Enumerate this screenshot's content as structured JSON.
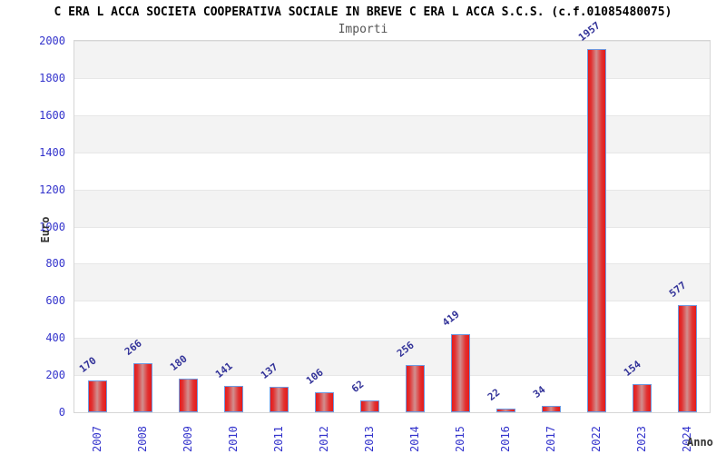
{
  "header": {
    "title": "C ERA L ACCA SOCIETA COOPERATIVA SOCIALE IN BREVE C ERA L ACCA S.C.S. (c.f.01085480075)",
    "subtitle": "Importi"
  },
  "chart_data": {
    "type": "bar",
    "title": "C ERA L ACCA SOCIETA COOPERATIVA SOCIALE IN BREVE C ERA L ACCA S.C.S. (c.f.01085480075)",
    "subtitle": "Importi",
    "xlabel": "Anno",
    "ylabel": "Euro",
    "categories": [
      "2007",
      "2008",
      "2009",
      "2010",
      "2011",
      "2012",
      "2013",
      "2014",
      "2015",
      "2016",
      "2017",
      "2022",
      "2023",
      "2024"
    ],
    "values": [
      170,
      266,
      180,
      141,
      137,
      106,
      62,
      256,
      419,
      22,
      34,
      1957,
      154,
      577
    ],
    "ylim": [
      0,
      2000
    ],
    "ytick_interval": 200,
    "yticks": [
      0,
      200,
      400,
      600,
      800,
      1000,
      1200,
      1400,
      1600,
      1800,
      2000
    ],
    "legend": false,
    "grid": "horizontal-bands",
    "colors": {
      "bar_red": "#e61a1a",
      "bar_mid": "#e13232",
      "bar_highlight": "#d18f8f",
      "bar_border": "#6f9ae0",
      "tick_label_blue": "#3333cc",
      "value_label_blue": "#333399",
      "band_gray": "#f3f3f3",
      "band_white": "#ffffff",
      "gridline": "#e7e7e7",
      "title_black": "#000000",
      "subtitle_gray": "#555555",
      "axis_title_gray": "#333333"
    }
  }
}
